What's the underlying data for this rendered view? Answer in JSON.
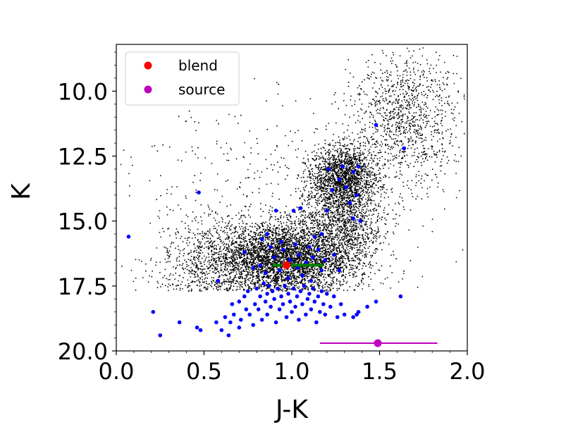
{
  "chart_data": {
    "type": "scatter",
    "xlabel": "J-K",
    "ylabel": "K",
    "xlim": [
      0.0,
      2.0
    ],
    "ylim": [
      20.0,
      8.2
    ],
    "y_inverted": true,
    "x_ticks": [
      "0.0",
      "0.5",
      "1.0",
      "1.5",
      "2.0"
    ],
    "y_ticks": [
      "10.0",
      "12.5",
      "15.0",
      "17.5",
      "20.0"
    ],
    "legend": {
      "placement": "top-left",
      "entries": [
        {
          "label": "blend",
          "color": "#ff0000"
        },
        {
          "label": "source",
          "color": "#bf00bf"
        }
      ]
    },
    "colors": {
      "field": "#000000",
      "blue": "#0000ff",
      "blend": "#ff0000",
      "source": "#bf00bf",
      "green_bar": "#008000"
    },
    "field_stars": {
      "description_free": true,
      "clusters": [
        {
          "x_mean": 0.95,
          "x_sd": 0.18,
          "y_mean": 16.4,
          "y_sd": 0.65,
          "n": 4200
        },
        {
          "x_mean": 1.3,
          "x_sd": 0.09,
          "y_mean": 13.3,
          "y_sd": 0.6,
          "n": 1600
        },
        {
          "x_mean": 1.28,
          "x_sd": 0.12,
          "y_mean": 15.2,
          "y_sd": 1.1,
          "n": 1500
        },
        {
          "x_mean": 1.65,
          "x_sd": 0.15,
          "y_mean": 11.0,
          "y_sd": 1.3,
          "n": 1100
        },
        {
          "x_mean": 0.55,
          "x_sd": 0.15,
          "y_mean": 16.5,
          "y_sd": 0.8,
          "n": 700
        },
        {
          "x_mean": 0.85,
          "x_sd": 0.45,
          "y_mean": 14.5,
          "y_sd": 2.2,
          "n": 500
        }
      ]
    },
    "blue_stars": [
      [
        0.07,
        15.6
      ],
      [
        0.21,
        18.5
      ],
      [
        0.25,
        19.4
      ],
      [
        0.36,
        18.9
      ],
      [
        0.46,
        19.1
      ],
      [
        0.48,
        19.2
      ],
      [
        0.47,
        13.9
      ],
      [
        0.57,
        18.9
      ],
      [
        0.58,
        17.3
      ],
      [
        0.6,
        19.2
      ],
      [
        0.62,
        18.7
      ],
      [
        0.64,
        19.4
      ],
      [
        0.65,
        18.9
      ],
      [
        0.66,
        18.2
      ],
      [
        0.67,
        18.6
      ],
      [
        0.7,
        18.1
      ],
      [
        0.7,
        19.1
      ],
      [
        0.71,
        18.8
      ],
      [
        0.73,
        17.9
      ],
      [
        0.74,
        18.4
      ],
      [
        0.75,
        17.7
      ],
      [
        0.76,
        18.6
      ],
      [
        0.78,
        19.0
      ],
      [
        0.79,
        18.2
      ],
      [
        0.8,
        17.6
      ],
      [
        0.81,
        18.4
      ],
      [
        0.82,
        17.9
      ],
      [
        0.83,
        18.8
      ],
      [
        0.84,
        17.4
      ],
      [
        0.85,
        18.1
      ],
      [
        0.86,
        17.8
      ],
      [
        0.86,
        18.6
      ],
      [
        0.87,
        17.5
      ],
      [
        0.88,
        18.3
      ],
      [
        0.89,
        17.7
      ],
      [
        0.9,
        18.0
      ],
      [
        0.91,
        18.9
      ],
      [
        0.92,
        17.6
      ],
      [
        0.93,
        18.4
      ],
      [
        0.94,
        17.9
      ],
      [
        0.95,
        18.2
      ],
      [
        0.96,
        17.5
      ],
      [
        0.97,
        18.7
      ],
      [
        0.98,
        17.8
      ],
      [
        0.99,
        18.1
      ],
      [
        1.0,
        18.5
      ],
      [
        1.01,
        17.6
      ],
      [
        1.02,
        18.3
      ],
      [
        1.03,
        17.9
      ],
      [
        1.04,
        18.8
      ],
      [
        1.05,
        17.7
      ],
      [
        1.06,
        18.2
      ],
      [
        1.07,
        17.5
      ],
      [
        1.08,
        18.6
      ],
      [
        1.09,
        18.0
      ],
      [
        1.1,
        17.8
      ],
      [
        1.11,
        18.4
      ],
      [
        1.12,
        17.6
      ],
      [
        1.13,
        18.1
      ],
      [
        1.14,
        18.9
      ],
      [
        1.15,
        17.9
      ],
      [
        1.16,
        18.5
      ],
      [
        1.17,
        17.7
      ],
      [
        1.18,
        18.2
      ],
      [
        1.19,
        18.6
      ],
      [
        1.2,
        17.8
      ],
      [
        1.22,
        18.3
      ],
      [
        1.24,
        17.9
      ],
      [
        1.26,
        18.7
      ],
      [
        1.28,
        18.2
      ],
      [
        1.3,
        18.6
      ],
      [
        1.35,
        18.7
      ],
      [
        1.37,
        18.6
      ],
      [
        1.38,
        18.5
      ],
      [
        1.43,
        18.3
      ],
      [
        1.48,
        18.1
      ],
      [
        1.62,
        17.9
      ],
      [
        0.73,
        16.2
      ],
      [
        0.82,
        16.7
      ],
      [
        0.85,
        17.0
      ],
      [
        0.88,
        16.0
      ],
      [
        0.9,
        16.4
      ],
      [
        0.93,
        16.9
      ],
      [
        0.95,
        16.1
      ],
      [
        0.99,
        16.5
      ],
      [
        1.02,
        15.9
      ],
      [
        1.04,
        16.3
      ],
      [
        1.06,
        17.1
      ],
      [
        1.08,
        16.6
      ],
      [
        1.1,
        16.0
      ],
      [
        1.12,
        16.4
      ],
      [
        1.15,
        16.1
      ],
      [
        1.17,
        16.9
      ],
      [
        1.19,
        16.5
      ],
      [
        1.13,
        15.6
      ],
      [
        1.17,
        15.5
      ],
      [
        1.2,
        14.6
      ],
      [
        1.21,
        13.0
      ],
      [
        1.23,
        13.8
      ],
      [
        1.27,
        13.4
      ],
      [
        1.29,
        12.9
      ],
      [
        1.31,
        13.7
      ],
      [
        1.33,
        14.3
      ],
      [
        1.35,
        13.1
      ],
      [
        1.37,
        14.0
      ],
      [
        1.38,
        12.9
      ],
      [
        1.39,
        15.0
      ],
      [
        0.91,
        14.6
      ],
      [
        1.01,
        14.6
      ],
      [
        1.05,
        14.5
      ],
      [
        0.86,
        15.5
      ],
      [
        1.35,
        14.9
      ],
      [
        1.48,
        11.3
      ],
      [
        1.64,
        12.2
      ],
      [
        0.83,
        15.7
      ],
      [
        1.27,
        16.9
      ],
      [
        0.78,
        16.8
      ],
      [
        0.98,
        17.2
      ],
      [
        1.11,
        17.3
      ],
      [
        1.03,
        16.8
      ],
      [
        1.24,
        16.3
      ],
      [
        0.94,
        15.8
      ]
    ],
    "blend": {
      "x": 0.97,
      "y": 16.7,
      "green_bar_x": [
        0.89,
        1.18
      ]
    },
    "source": {
      "x": 1.49,
      "y": 19.7,
      "x_err": [
        1.16,
        1.83
      ]
    }
  }
}
